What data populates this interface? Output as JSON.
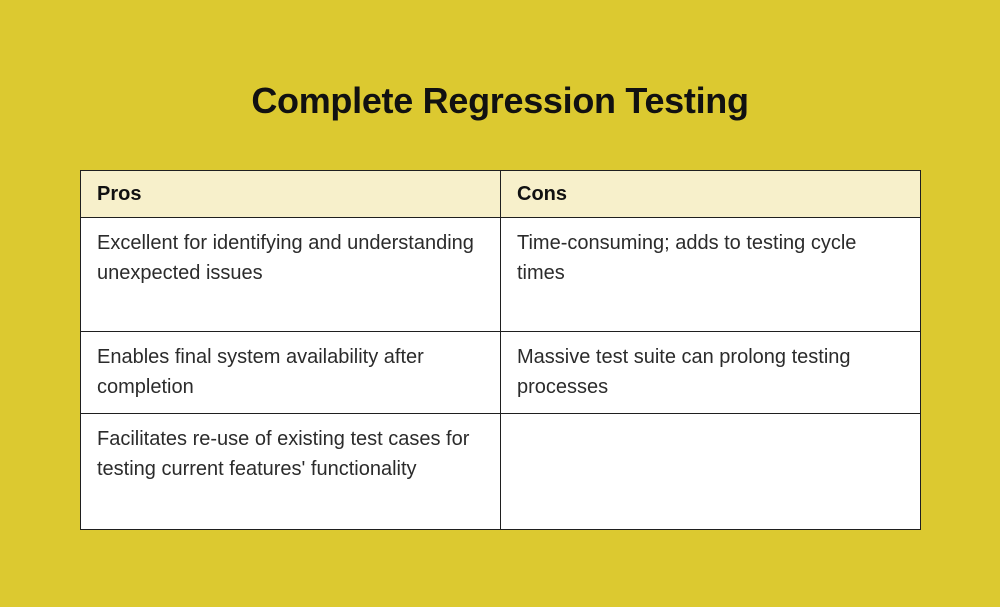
{
  "page": {
    "title": "Complete Regression Testing",
    "background_color": "#dcc930"
  },
  "table": {
    "header_bg_color": "#f7f0cb",
    "body_bg_color": "#ffffff",
    "border_color": "#1f1f1f",
    "columns": [
      "Pros",
      "Cons"
    ],
    "rows": [
      [
        "Excellent for identifying and understanding unexpected issues",
        "Time-consuming; adds to testing cycle times"
      ],
      [
        "Enables final system availability after completion",
        "Massive test suite can prolong testing processes"
      ],
      [
        "Facilitates re-use of existing test cases for testing current features' functionality",
        ""
      ]
    ]
  }
}
